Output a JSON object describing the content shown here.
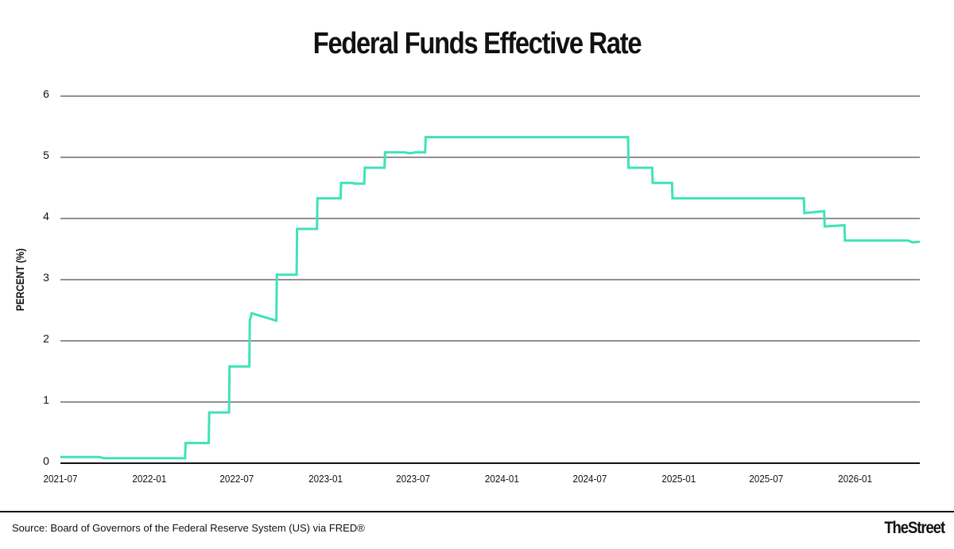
{
  "chart_data": {
    "type": "line",
    "title": "Federal Funds Effective Rate",
    "xlabel": "",
    "ylabel": "PERCENT (%)",
    "x_ticks": [
      "2021-07",
      "2022-01",
      "2022-07",
      "2023-01",
      "2023-07",
      "2024-01",
      "2024-07",
      "2025-01",
      "2025-07",
      "2026-01"
    ],
    "y_ticks": [
      "0",
      "1",
      "2",
      "3",
      "4",
      "5",
      "6"
    ],
    "ylim": [
      0,
      6
    ],
    "xlim": [
      "2021-07-01",
      "2026-05-15"
    ],
    "grid": "horizontal",
    "legend": "none",
    "series": [
      {
        "color": "#3ee3b8",
        "x": [
          "2021-07-01",
          "2021-09-20",
          "2021-09-30",
          "2022-03-16",
          "2022-03-17",
          "2022-05-04",
          "2022-05-05",
          "2022-06-15",
          "2022-06-16",
          "2022-07-27",
          "2022-07-28",
          "2022-08-01",
          "2022-09-21",
          "2022-09-22",
          "2022-11-02",
          "2022-11-03",
          "2022-12-14",
          "2022-12-15",
          "2023-02-01",
          "2023-02-02",
          "2023-02-28",
          "2023-03-01",
          "2023-03-22",
          "2023-03-23",
          "2023-03-31",
          "2023-04-03",
          "2023-05-03",
          "2023-05-04",
          "2023-06-15",
          "2023-06-20",
          "2023-06-30",
          "2023-07-03",
          "2023-07-26",
          "2023-07-27",
          "2024-09-18",
          "2024-09-19",
          "2024-11-07",
          "2024-11-08",
          "2024-12-18",
          "2024-12-19",
          "2025-09-17",
          "2025-09-18",
          "2025-10-29",
          "2025-10-30",
          "2025-12-10",
          "2025-12-11",
          "2026-04-20",
          "2026-04-30",
          "2026-05-15"
        ],
        "y": [
          0.1,
          0.1,
          0.08,
          0.08,
          0.33,
          0.33,
          0.83,
          0.83,
          1.58,
          1.58,
          2.33,
          2.45,
          2.33,
          3.08,
          3.08,
          3.83,
          3.83,
          4.33,
          4.33,
          4.58,
          4.58,
          4.57,
          4.57,
          4.83,
          4.83,
          4.83,
          4.83,
          5.08,
          5.08,
          5.07,
          5.07,
          5.08,
          5.08,
          5.33,
          5.33,
          4.83,
          4.83,
          4.58,
          4.58,
          4.33,
          4.33,
          4.09,
          4.12,
          3.87,
          3.89,
          3.64,
          3.64,
          3.61,
          3.62
        ]
      }
    ]
  },
  "footer": {
    "source": "Source: Board of Governors of the Federal Reserve System (US) via FRED®",
    "brand": "TheStreet"
  }
}
